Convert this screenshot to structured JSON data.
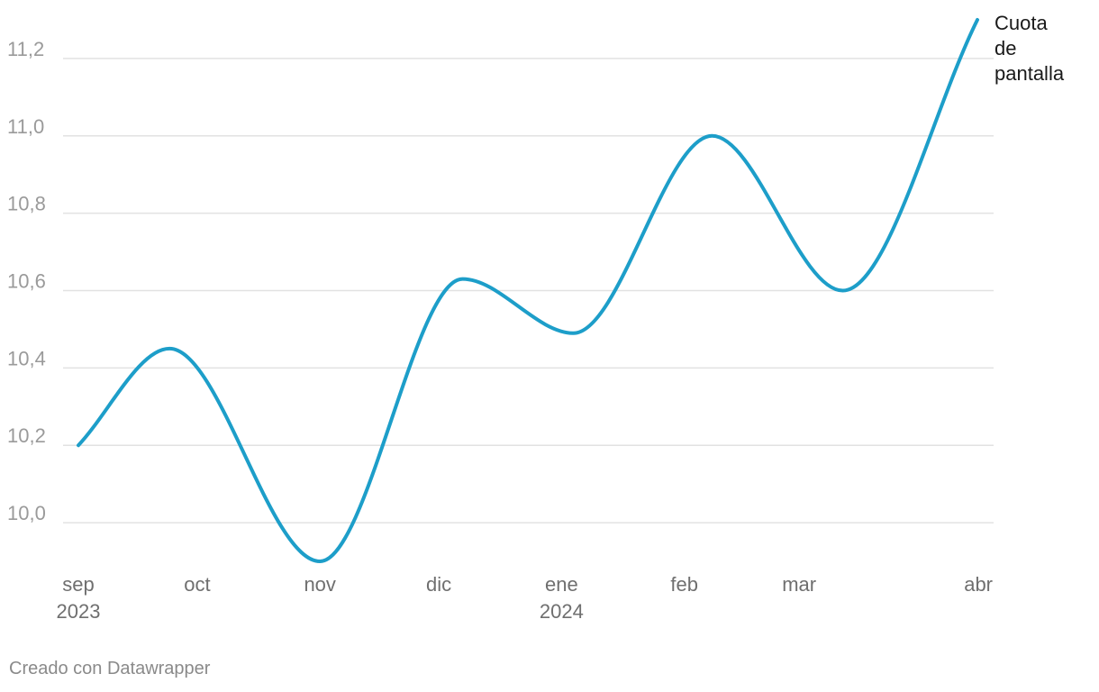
{
  "chart_data": {
    "type": "line",
    "x": [
      "sep 2023",
      "oct",
      "nov",
      "dic",
      "ene 2024",
      "feb",
      "mar",
      "abr"
    ],
    "x_dates": [
      "2023-09-01",
      "2023-10-01",
      "2023-11-01",
      "2023-12-01",
      "2024-01-01",
      "2024-02-01",
      "2024-03-01",
      "2024-04-01"
    ],
    "x_ticks": [
      {
        "date": "2023-09-01",
        "label": "sep",
        "sublabel": "2023"
      },
      {
        "date": "2023-10-01",
        "label": "oct",
        "sublabel": ""
      },
      {
        "date": "2023-11-01",
        "label": "nov",
        "sublabel": ""
      },
      {
        "date": "2023-12-01",
        "label": "dic",
        "sublabel": ""
      },
      {
        "date": "2024-01-01",
        "label": "ene",
        "sublabel": "2024"
      },
      {
        "date": "2024-02-01",
        "label": "feb",
        "sublabel": ""
      },
      {
        "date": "2024-03-01",
        "label": "mar",
        "sublabel": ""
      },
      {
        "date": "2024-04-01",
        "label": "abr",
        "sublabel": ""
      }
    ],
    "series": [
      {
        "name": "Cuota de pantalla",
        "color": "#1d9ec9",
        "points": [
          {
            "date": "2023-09-01",
            "value": 10.2
          },
          {
            "date": "2023-09-24",
            "value": 10.45
          },
          {
            "date": "2023-11-01",
            "value": 9.9
          },
          {
            "date": "2023-12-07",
            "value": 10.63
          },
          {
            "date": "2024-01-04",
            "value": 10.49
          },
          {
            "date": "2024-02-08",
            "value": 11.0
          },
          {
            "date": "2024-03-12",
            "value": 10.6
          },
          {
            "date": "2024-04-15",
            "value": 11.3
          }
        ]
      }
    ],
    "y_ticks": [
      "10,0",
      "10,2",
      "10,4",
      "10,6",
      "10,8",
      "11,0",
      "11,2"
    ],
    "ylim": [
      9.9,
      11.3
    ],
    "grid": true,
    "legend": "inline label at line end"
  },
  "footer": {
    "credit": "Creado con Datawrapper"
  }
}
